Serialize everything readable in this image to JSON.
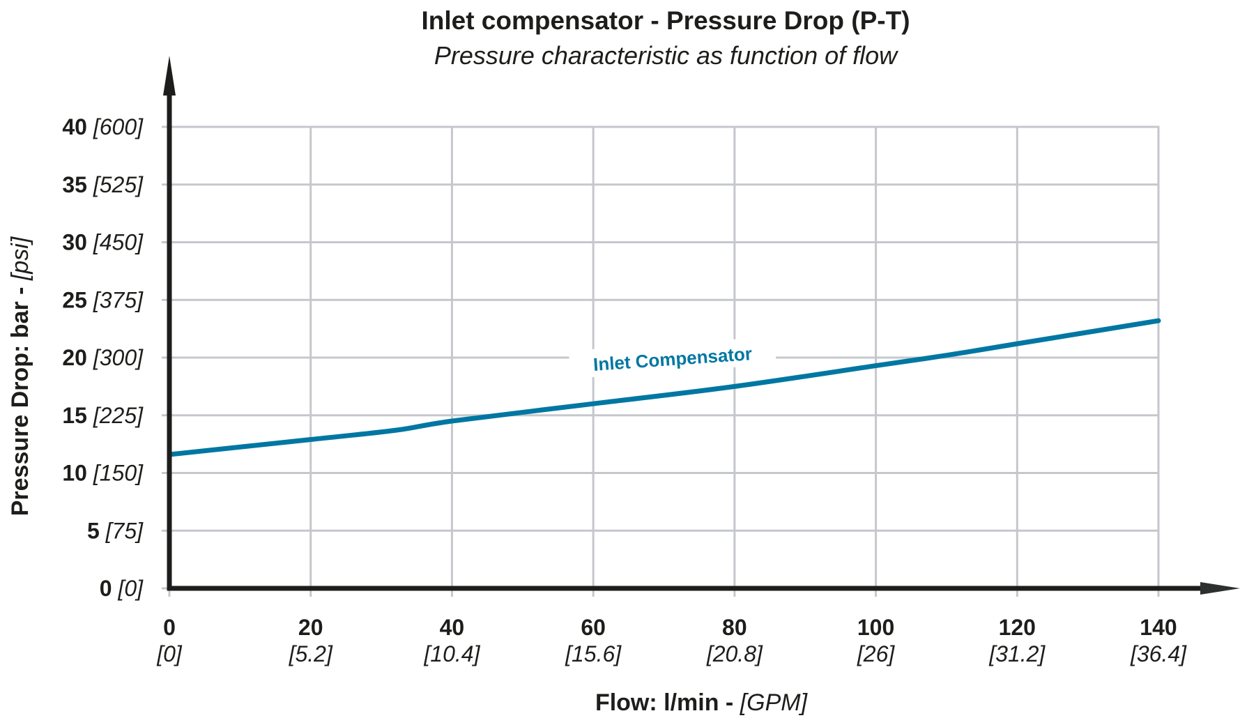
{
  "chart_data": {
    "type": "line",
    "title": "Inlet compensator - Pressure Drop (P-T)",
    "subtitle": "Pressure characteristic as function of flow",
    "xlabel": {
      "main": "Flow: l/min - ",
      "alt": "[GPM]"
    },
    "ylabel": {
      "main": "Pressure Drop: bar - ",
      "alt": "[psi]"
    },
    "xlim": [
      0,
      140
    ],
    "ylim": [
      0,
      40
    ],
    "grid": true,
    "x_ticks": [
      {
        "value": 0,
        "label": "0",
        "alt": "[0]"
      },
      {
        "value": 20,
        "label": "20",
        "alt": "[5.2]"
      },
      {
        "value": 40,
        "label": "40",
        "alt": "[10.4]"
      },
      {
        "value": 60,
        "label": "60",
        "alt": "[15.6]"
      },
      {
        "value": 80,
        "label": "80",
        "alt": "[20.8]"
      },
      {
        "value": 100,
        "label": "100",
        "alt": "[26]"
      },
      {
        "value": 120,
        "label": "120",
        "alt": "[31.2]"
      },
      {
        "value": 140,
        "label": "140",
        "alt": "[36.4]"
      }
    ],
    "y_ticks": [
      {
        "value": 0,
        "label": "0",
        "alt": "[0]"
      },
      {
        "value": 5,
        "label": "5",
        "alt": "[75]"
      },
      {
        "value": 10,
        "label": "10",
        "alt": "[150]"
      },
      {
        "value": 15,
        "label": "15",
        "alt": "[225]"
      },
      {
        "value": 20,
        "label": "20",
        "alt": "[300]"
      },
      {
        "value": 25,
        "label": "25",
        "alt": "[375]"
      },
      {
        "value": 30,
        "label": "30",
        "alt": "[450]"
      },
      {
        "value": 35,
        "label": "35",
        "alt": "[525]"
      },
      {
        "value": 40,
        "label": "40",
        "alt": "[600]"
      }
    ],
    "series": [
      {
        "name": "Inlet Compensator",
        "color": "#0077a2",
        "x": [
          0,
          20,
          32,
          40,
          60,
          80,
          100,
          110,
          120,
          140
        ],
        "y": [
          11.6,
          12.9,
          13.7,
          14.5,
          16.0,
          17.5,
          19.3,
          20.2,
          21.2,
          23.2
        ]
      }
    ]
  }
}
